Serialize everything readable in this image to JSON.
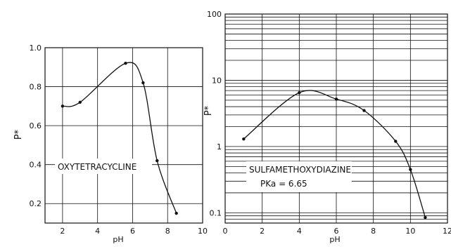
{
  "chart_data": [
    {
      "type": "line",
      "title": "",
      "annotation": "OXYTETRACYCLINE",
      "xlabel": "pH",
      "ylabel": "P*",
      "xlim": [
        1,
        10
      ],
      "ylim": [
        0.1,
        1.0
      ],
      "xticks": [
        2,
        4,
        6,
        8,
        10
      ],
      "yticks": [
        0.2,
        0.4,
        0.6,
        0.8,
        1.0
      ],
      "ytick_labels": [
        "0.2",
        "0.4",
        "0.6",
        "0.8",
        "1.0"
      ],
      "yscale": "linear",
      "grid": true,
      "series": [
        {
          "x": [
            2.0,
            3.0,
            5.6,
            6.6,
            7.4,
            8.5
          ],
          "y": [
            0.7,
            0.72,
            0.92,
            0.82,
            0.42,
            0.15
          ]
        }
      ]
    },
    {
      "type": "line",
      "title": "",
      "annotation": "SULFAMETHOXYDIAZINE",
      "annotation2": "PKa = 6.65",
      "xlabel": "pH",
      "ylabel": "P*",
      "xlim": [
        0,
        12
      ],
      "ylim": [
        0.07,
        100
      ],
      "xticks": [
        0,
        2,
        4,
        6,
        8,
        10,
        12
      ],
      "yticks": [
        0.1,
        1,
        10,
        100
      ],
      "ytick_labels": [
        "0.1",
        "1",
        "10",
        "100"
      ],
      "yscale": "log",
      "grid": true,
      "series": [
        {
          "x": [
            1.0,
            4.0,
            6.0,
            7.5,
            9.2,
            10.0,
            10.8
          ],
          "y": [
            1.3,
            6.5,
            5.2,
            3.5,
            1.2,
            0.45,
            0.085
          ]
        }
      ]
    }
  ]
}
